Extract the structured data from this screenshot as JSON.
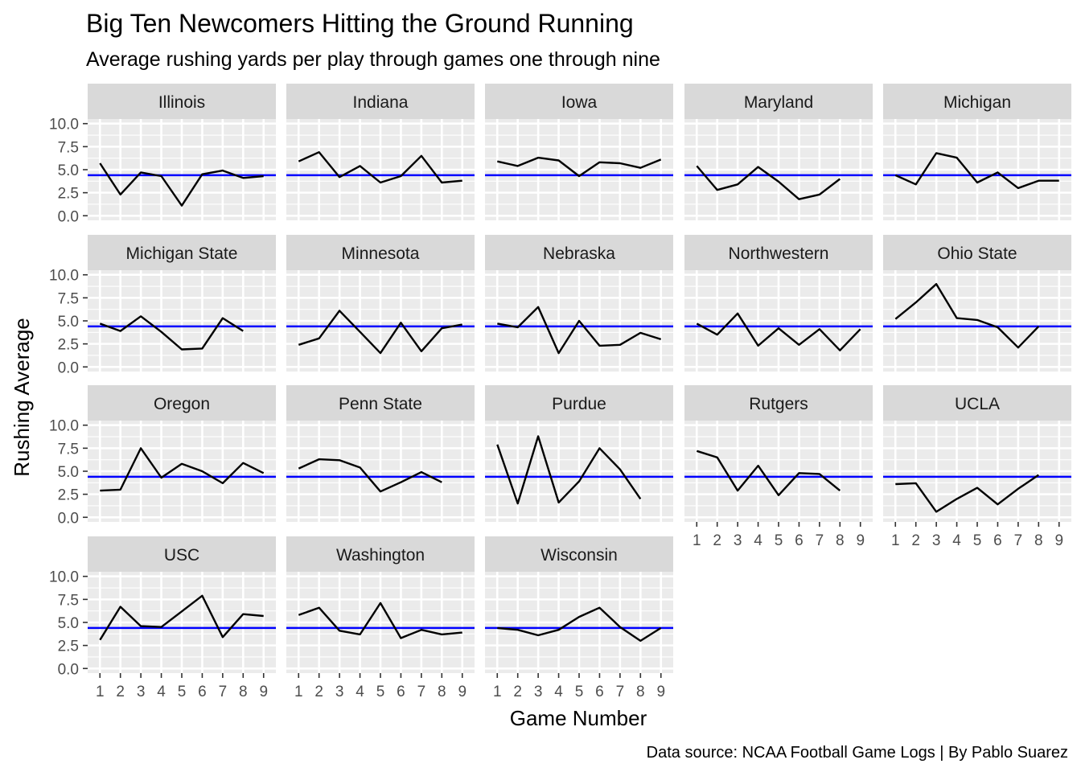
{
  "chart_data": {
    "type": "line",
    "title": "Big Ten Newcomers Hitting the Ground Running",
    "subtitle": "Average rushing yards per play through games one through nine",
    "xlabel": "Game Number",
    "ylabel": "Rushing Average",
    "caption": "Data source: NCAA Football Game Logs | By Pablo Suarez",
    "x_ticks": [
      "1",
      "2",
      "3",
      "4",
      "5",
      "6",
      "7",
      "8",
      "9"
    ],
    "y_ticks": [
      "0.0",
      "2.5",
      "5.0",
      "7.5",
      "10.0"
    ],
    "xlim": [
      1,
      9
    ],
    "ylim": [
      0,
      10
    ],
    "reference_line": {
      "y": 4.4,
      "color": "#0000ff"
    },
    "line_color": "#000000",
    "panel_background": "#ebebeb",
    "strip_background": "#d9d9d9",
    "grid": true,
    "facets": [
      {
        "name": "Illinois",
        "x": [
          1,
          2,
          3,
          4,
          5,
          6,
          7,
          8,
          9
        ],
        "y": [
          5.7,
          2.3,
          4.7,
          4.3,
          1.1,
          4.5,
          4.9,
          4.1,
          4.3
        ]
      },
      {
        "name": "Indiana",
        "x": [
          1,
          2,
          3,
          4,
          5,
          6,
          7,
          8,
          9
        ],
        "y": [
          5.9,
          6.9,
          4.2,
          5.4,
          3.6,
          4.3,
          6.5,
          3.6,
          3.8
        ]
      },
      {
        "name": "Iowa",
        "x": [
          1,
          2,
          3,
          4,
          5,
          6,
          7,
          8,
          9
        ],
        "y": [
          5.9,
          5.4,
          6.3,
          6.0,
          4.3,
          5.8,
          5.7,
          5.2,
          6.1
        ]
      },
      {
        "name": "Maryland",
        "x": [
          1,
          2,
          3,
          4,
          5,
          6,
          7,
          8
        ],
        "y": [
          5.4,
          2.8,
          3.4,
          5.3,
          3.7,
          1.8,
          2.3,
          4.0
        ]
      },
      {
        "name": "Michigan",
        "x": [
          1,
          2,
          3,
          4,
          5,
          6,
          7,
          8,
          9
        ],
        "y": [
          4.4,
          3.4,
          6.8,
          6.3,
          3.6,
          4.7,
          3.0,
          3.8,
          3.8
        ]
      },
      {
        "name": "Michigan State",
        "x": [
          1,
          2,
          3,
          4,
          5,
          6,
          7,
          8
        ],
        "y": [
          4.7,
          3.9,
          5.5,
          3.8,
          1.9,
          2.0,
          5.3,
          3.9
        ]
      },
      {
        "name": "Minnesota",
        "x": [
          1,
          2,
          3,
          4,
          5,
          6,
          7,
          8,
          9
        ],
        "y": [
          2.4,
          3.1,
          6.1,
          3.8,
          1.5,
          4.8,
          1.7,
          4.2,
          4.6
        ]
      },
      {
        "name": "Nebraska",
        "x": [
          1,
          2,
          3,
          4,
          5,
          6,
          7,
          8,
          9
        ],
        "y": [
          4.7,
          4.3,
          6.5,
          1.5,
          5.0,
          2.3,
          2.4,
          3.7,
          3.0
        ]
      },
      {
        "name": "Northwestern",
        "x": [
          1,
          2,
          3,
          4,
          5,
          6,
          7,
          8,
          9
        ],
        "y": [
          4.7,
          3.5,
          5.8,
          2.3,
          4.2,
          2.4,
          4.1,
          1.8,
          4.1
        ]
      },
      {
        "name": "Ohio State",
        "x": [
          1,
          2,
          3,
          4,
          5,
          6,
          7,
          8
        ],
        "y": [
          5.2,
          7.0,
          9.0,
          5.3,
          5.1,
          4.3,
          2.1,
          4.4
        ]
      },
      {
        "name": "Oregon",
        "x": [
          1,
          2,
          3,
          4,
          5,
          6,
          7,
          8,
          9
        ],
        "y": [
          2.9,
          3.0,
          7.5,
          4.3,
          5.8,
          5.0,
          3.7,
          5.9,
          4.8
        ]
      },
      {
        "name": "Penn State",
        "x": [
          1,
          2,
          3,
          4,
          5,
          6,
          7,
          8
        ],
        "y": [
          5.3,
          6.3,
          6.2,
          5.4,
          2.8,
          3.8,
          4.9,
          3.8
        ]
      },
      {
        "name": "Purdue",
        "x": [
          1,
          2,
          3,
          4,
          5,
          6,
          7,
          8
        ],
        "y": [
          7.9,
          1.5,
          8.8,
          1.6,
          3.9,
          7.5,
          5.2,
          2.0
        ]
      },
      {
        "name": "Rutgers",
        "x": [
          1,
          2,
          3,
          4,
          5,
          6,
          7,
          8
        ],
        "y": [
          7.2,
          6.5,
          2.9,
          5.6,
          2.4,
          4.8,
          4.7,
          2.9
        ]
      },
      {
        "name": "UCLA",
        "x": [
          1,
          2,
          3,
          4,
          5,
          6,
          7,
          8
        ],
        "y": [
          3.6,
          3.7,
          0.6,
          2.0,
          3.2,
          1.4,
          3.1,
          4.6
        ]
      },
      {
        "name": "USC",
        "x": [
          1,
          2,
          3,
          4,
          5,
          6,
          7,
          8,
          9
        ],
        "y": [
          3.1,
          6.7,
          4.6,
          4.5,
          6.2,
          7.9,
          3.4,
          5.9,
          5.7
        ]
      },
      {
        "name": "Washington",
        "x": [
          1,
          2,
          3,
          4,
          5,
          6,
          7,
          8,
          9
        ],
        "y": [
          5.8,
          6.6,
          4.1,
          3.7,
          7.1,
          3.3,
          4.2,
          3.7,
          3.9
        ]
      },
      {
        "name": "Wisconsin",
        "x": [
          1,
          2,
          3,
          4,
          5,
          6,
          7,
          8,
          9
        ],
        "y": [
          4.4,
          4.2,
          3.6,
          4.2,
          5.6,
          6.6,
          4.5,
          3.0,
          4.4
        ]
      }
    ]
  }
}
